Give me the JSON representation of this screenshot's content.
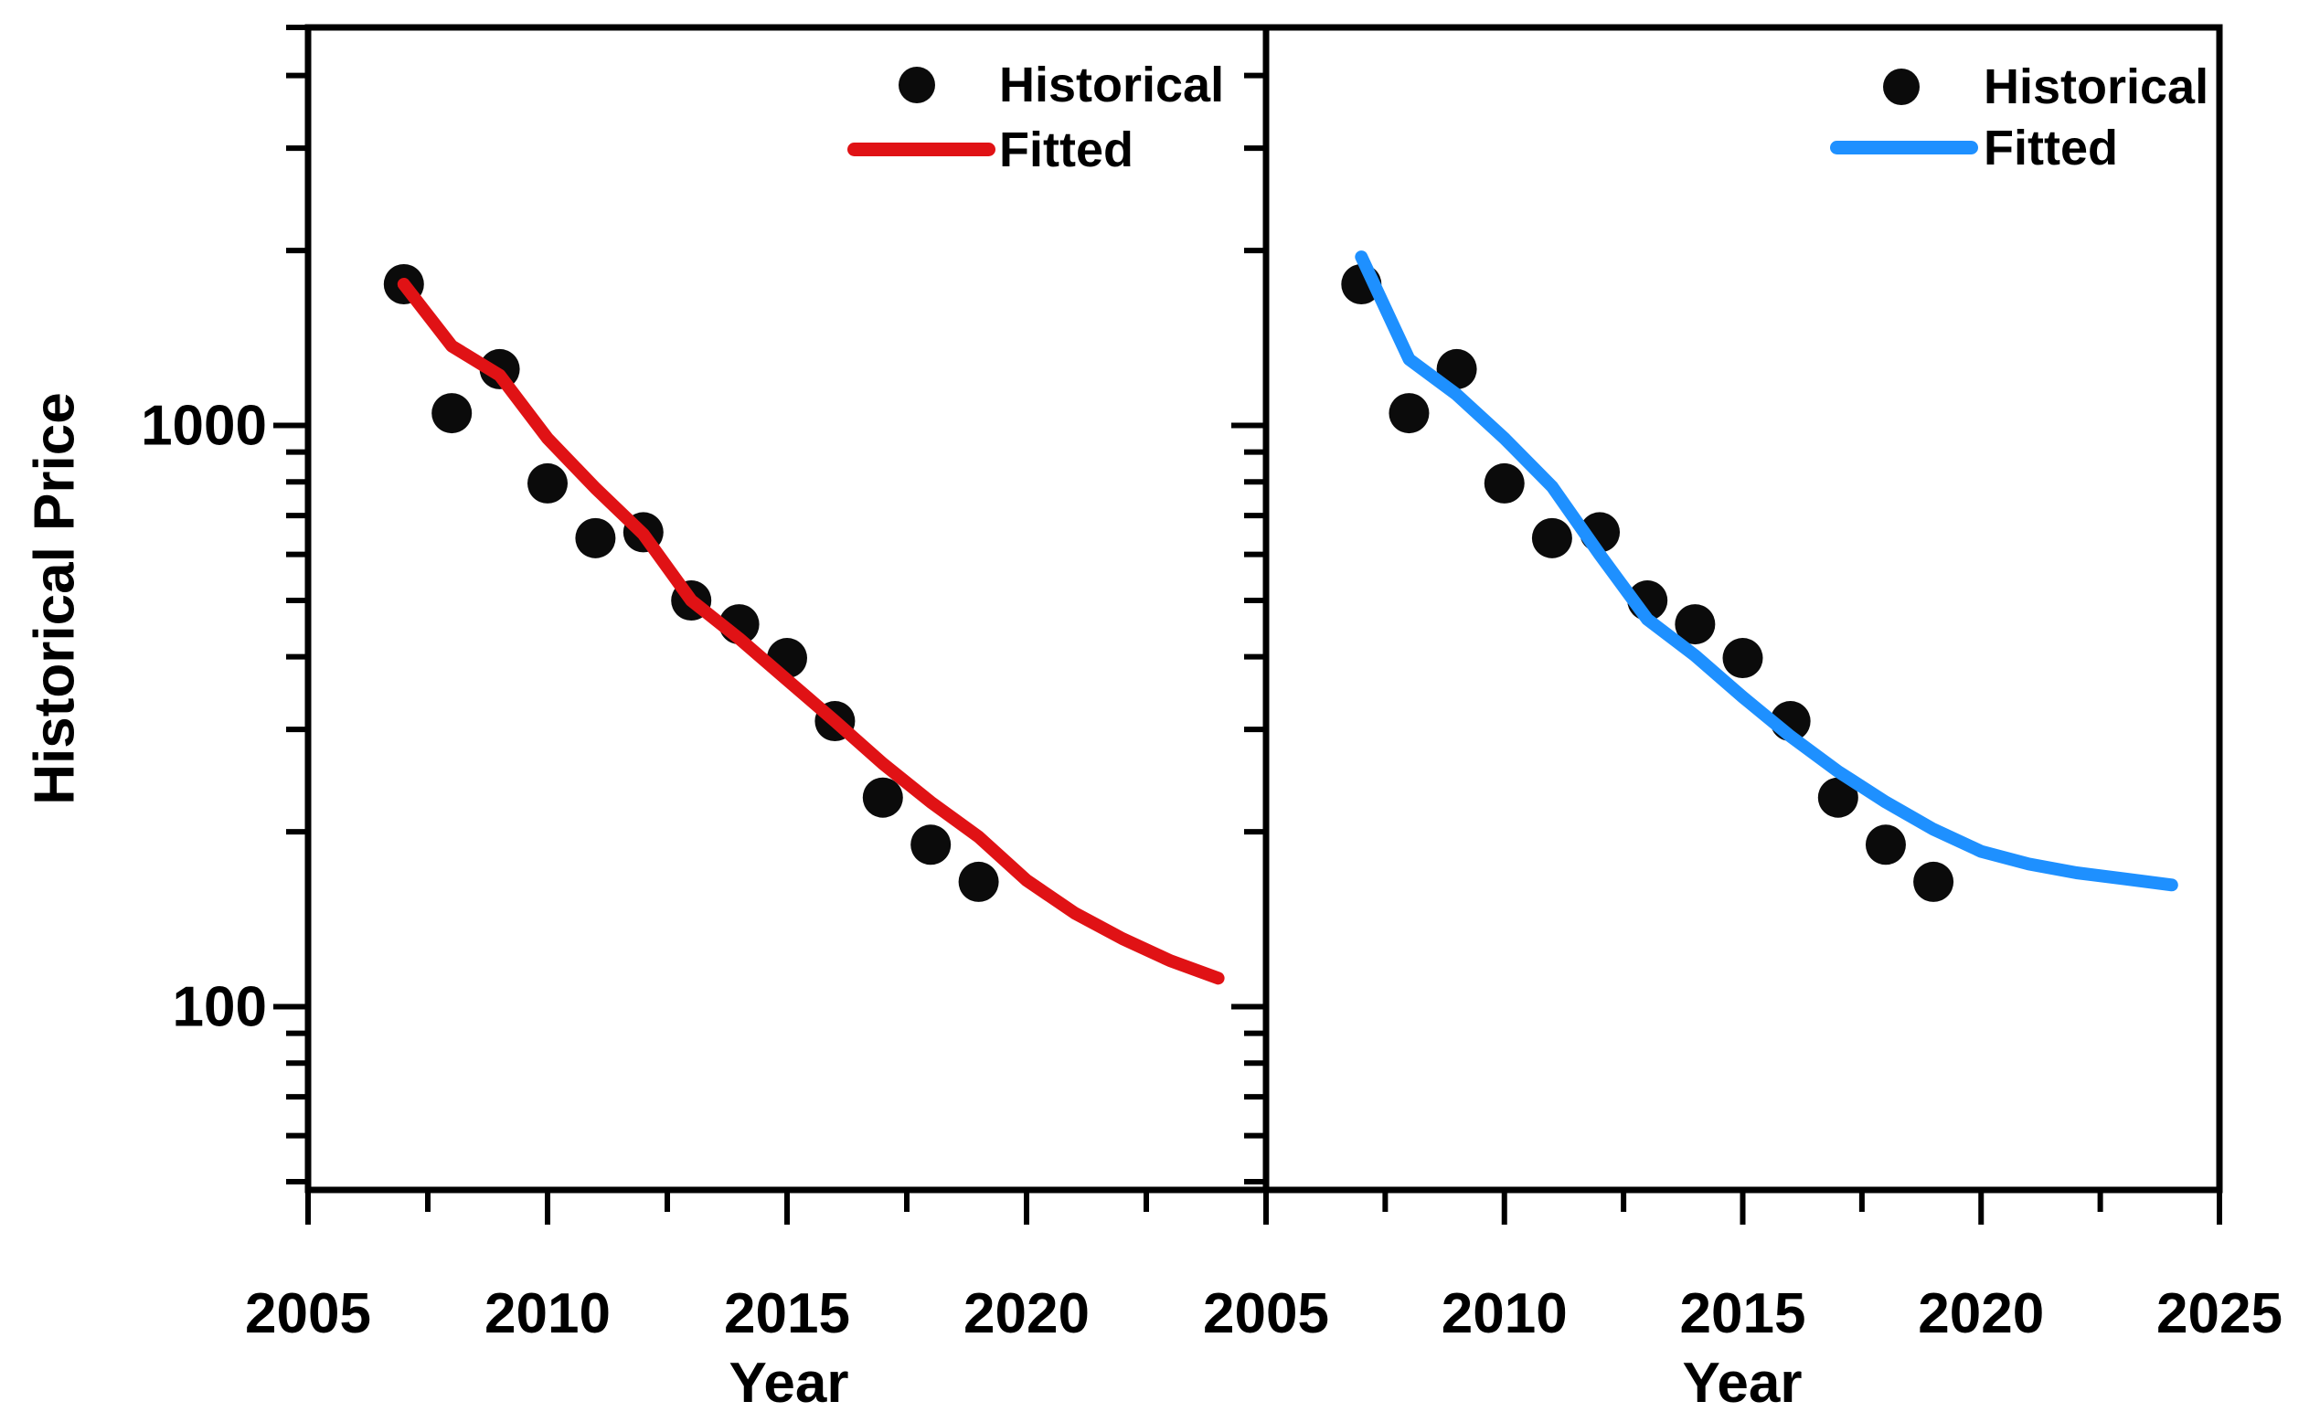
{
  "figure": {
    "ylabel": "Historical Price",
    "background": "#ffffff",
    "axis_color": "#000000",
    "point_color": "#0b0b0b",
    "red_accent": "#e01215",
    "blue_accent": "#1e90ff"
  },
  "chart_data": [
    {
      "panel": "left",
      "type": "scatter",
      "title": "",
      "xlabel": "Year",
      "ylabel": "Historical Price",
      "legend": {
        "position": "top-right",
        "entries": [
          "Historical",
          "Fitted"
        ]
      },
      "x_axis": {
        "scale": "linear",
        "range": [
          2005,
          2025
        ],
        "major_ticks": [
          2005,
          2010,
          2015,
          2020,
          2025
        ],
        "minor_ticks": [
          2007.5,
          2012.5,
          2017.5,
          2022.5
        ],
        "tick_labels": [
          {
            "v": 2005,
            "label": "2005"
          },
          {
            "v": 2010,
            "label": "2010"
          },
          {
            "v": 2015,
            "label": "2015"
          },
          {
            "v": 2020,
            "label": "2020"
          }
        ]
      },
      "y_axis": {
        "scale": "log",
        "range": [
          48,
          4850
        ],
        "major_ticks": [
          100,
          1000
        ],
        "minor_ticks": [
          50,
          60,
          70,
          80,
          90,
          200,
          300,
          400,
          500,
          600,
          700,
          800,
          900,
          2000,
          3000,
          4000
        ],
        "tick_labels": [
          {
            "v": 1000,
            "label": "1000"
          },
          {
            "v": 100,
            "label": "100"
          }
        ]
      },
      "series": [
        {
          "name": "Historical",
          "type": "scatter",
          "marker": "circle",
          "color": "#0b0b0b",
          "x": [
            2007,
            2008,
            2009,
            2010,
            2011,
            2012,
            2013,
            2014,
            2015,
            2016,
            2017,
            2018,
            2019
          ],
          "y": [
            1750,
            1050,
            1250,
            795,
            640,
            655,
            500,
            455,
            398,
            310,
            229,
            190,
            164
          ]
        },
        {
          "name": "Fitted",
          "type": "line",
          "color": "#e01215",
          "x": [
            2007,
            2008,
            2009,
            2010,
            2011,
            2012,
            2013,
            2014,
            2015,
            2016,
            2017,
            2018,
            2019,
            2020,
            2021,
            2022,
            2023,
            2024
          ],
          "y": [
            1750,
            1370,
            1220,
            950,
            780,
            650,
            500,
            430,
            365,
            310,
            262,
            225,
            196,
            165,
            145,
            131,
            120,
            112
          ]
        }
      ]
    },
    {
      "panel": "right",
      "type": "scatter",
      "title": "",
      "xlabel": "Year",
      "ylabel": "Historical Price",
      "legend": {
        "position": "top-right",
        "entries": [
          "Historical",
          "Fitted"
        ]
      },
      "x_axis": {
        "scale": "linear",
        "range": [
          2005,
          2025
        ],
        "major_ticks": [
          2005,
          2010,
          2015,
          2020,
          2025
        ],
        "minor_ticks": [
          2007.5,
          2012.5,
          2017.5,
          2022.5
        ],
        "tick_labels": [
          {
            "v": 2005,
            "label": "2005"
          },
          {
            "v": 2010,
            "label": "2010"
          },
          {
            "v": 2015,
            "label": "2015"
          },
          {
            "v": 2020,
            "label": "2020"
          },
          {
            "v": 2025,
            "label": "2025"
          }
        ]
      },
      "y_axis": {
        "scale": "log",
        "range": [
          48,
          4850
        ],
        "major_ticks": [
          100,
          1000
        ],
        "minor_ticks": [
          50,
          60,
          70,
          80,
          90,
          200,
          300,
          400,
          500,
          600,
          700,
          800,
          900,
          2000,
          3000,
          4000
        ],
        "tick_labels": []
      },
      "series": [
        {
          "name": "Historical",
          "type": "scatter",
          "marker": "circle",
          "color": "#0b0b0b",
          "x": [
            2007,
            2008,
            2009,
            2010,
            2011,
            2012,
            2013,
            2014,
            2015,
            2016,
            2017,
            2018,
            2019
          ],
          "y": [
            1750,
            1050,
            1250,
            795,
            640,
            655,
            500,
            455,
            398,
            310,
            229,
            190,
            164
          ]
        },
        {
          "name": "Fitted",
          "type": "line",
          "color": "#1e90ff",
          "x": [
            2007,
            2008,
            2009,
            2010,
            2011,
            2012,
            2013,
            2014,
            2015,
            2016,
            2017,
            2018,
            2019,
            2020,
            2021,
            2022,
            2023,
            2024
          ],
          "y": [
            1950,
            1300,
            1130,
            950,
            785,
            600,
            464,
            402,
            341,
            292,
            254,
            225,
            202,
            185,
            176,
            170,
            166,
            162
          ]
        }
      ]
    }
  ]
}
